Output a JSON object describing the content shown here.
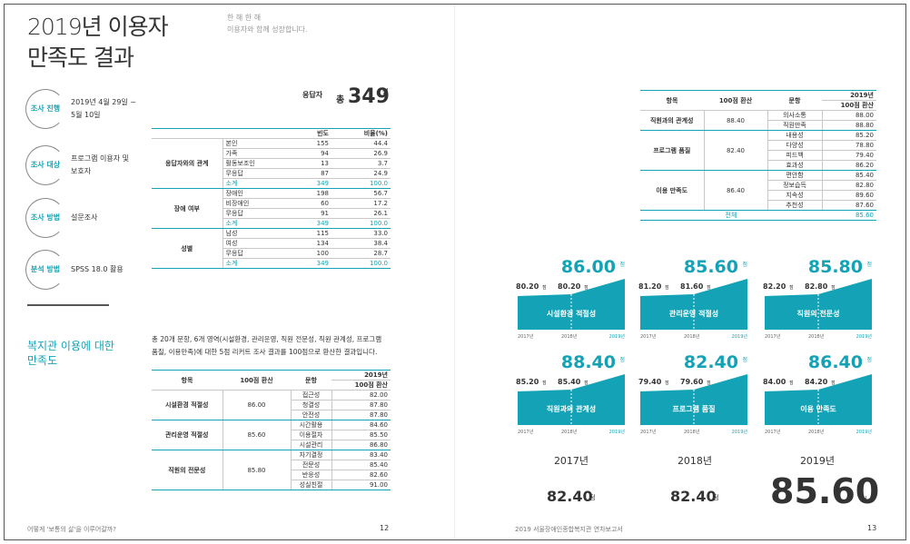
{
  "left_page": {
    "title": [
      "2019년 이용자",
      "만족도 결과"
    ],
    "subtitle": [
      "한 해 한 해",
      "이용자와 함께 성장합니다."
    ],
    "survey": [
      {
        "label": "조사 진행",
        "text": [
          "2019년 4월 29일 ~",
          "5월 10일"
        ]
      },
      {
        "label": "조사 대상",
        "text": [
          "프로그램 이용자 및",
          "보호자"
        ]
      },
      {
        "label": "조사 방법",
        "text": [
          "설문조사"
        ]
      },
      {
        "label": "분석 방법",
        "text": [
          "SPSS 18.0 활용"
        ]
      }
    ],
    "respondents": {
      "label": "응답자",
      "prefix": "총",
      "count": "349",
      "unit": "명"
    },
    "demographics": {
      "headers": [
        "빈도",
        "비율(%)"
      ],
      "groups": [
        {
          "name": "응답자와의 관계",
          "rows": [
            [
              "본인",
              "155",
              "44.4"
            ],
            [
              "가족",
              "94",
              "26.9"
            ],
            [
              "활동보조인",
              "13",
              "3.7"
            ],
            [
              "무응답",
              "87",
              "24.9"
            ],
            [
              "소계",
              "349",
              "100.0"
            ]
          ]
        },
        {
          "name": "장애 여부",
          "rows": [
            [
              "장애인",
              "198",
              "56.7"
            ],
            [
              "비장애인",
              "60",
              "17.2"
            ],
            [
              "무응답",
              "91",
              "26.1"
            ],
            [
              "소계",
              "349",
              "100.0"
            ]
          ]
        },
        {
          "name": "성별",
          "rows": [
            [
              "남성",
              "115",
              "33.0"
            ],
            [
              "여성",
              "134",
              "38.4"
            ],
            [
              "무응답",
              "100",
              "28.7"
            ],
            [
              "소계",
              "349",
              "100.0"
            ]
          ]
        }
      ]
    },
    "section_heading": [
      "복지관 이용에 대한",
      "만족도"
    ],
    "description": [
      "총 20개 문항, 6개 영역(시설환경, 관리운영, 직원 전문성, 직원 관계성, 프로그램",
      "품질, 이용만족)에 대한 5점 리커트 조사 결과를 100점으로 환산한 결과입니다."
    ],
    "scores": [
      {
        "area": "시설환경 적절성",
        "score": "86.00",
        "items": [
          [
            "접근성",
            "82.00"
          ],
          [
            "청결성",
            "87.80"
          ],
          [
            "안전성",
            "87.80"
          ]
        ]
      },
      {
        "area": "관리운영 적절성",
        "score": "85.60",
        "items": [
          [
            "시간활용",
            "84.60"
          ],
          [
            "이용절차",
            "85.50"
          ],
          [
            "시설관리",
            "86.80"
          ]
        ]
      },
      {
        "area": "직원의 전문성",
        "score": "85.80",
        "items": [
          [
            "자기결정",
            "83.40"
          ],
          [
            "전문성",
            "85.40"
          ],
          [
            "반응성",
            "82.60"
          ],
          [
            "성실친절",
            "91.00"
          ]
        ]
      }
    ],
    "footer": "어떻게 '보통의 삶'을 이루어갈까?",
    "page_number": "12"
  },
  "score_headers": [
    "항목",
    "100점 환산",
    "문항",
    "2019년",
    "100점 환산"
  ],
  "right_page": {
    "scores": [
      {
        "area": "직원과의 관계성",
        "score": "88.40",
        "items": [
          [
            "의사소통",
            "88.00"
          ],
          [
            "직원만족",
            "88.80"
          ]
        ]
      },
      {
        "area": "프로그램 품질",
        "score": "82.40",
        "items": [
          [
            "내용성",
            "85.20"
          ],
          [
            "다양성",
            "78.80"
          ],
          [
            "피드백",
            "79.40"
          ],
          [
            "효과성",
            "86.20"
          ]
        ]
      },
      {
        "area": "이용 만족도",
        "score": "86.40",
        "items": [
          [
            "편안함",
            "85.40"
          ],
          [
            "정보습득",
            "82.80"
          ],
          [
            "지속성",
            "89.60"
          ],
          [
            "추천성",
            "87.60"
          ]
        ]
      }
    ],
    "total": [
      "전체",
      "85.60"
    ],
    "unit": "점",
    "years": [
      "2017년",
      "2018년",
      "2019년"
    ],
    "trends": [
      {
        "name": "시설환경 적절성",
        "values": [
          "80.20",
          "80.20",
          "86.00"
        ]
      },
      {
        "name": "관리운영 적절성",
        "values": [
          "81.20",
          "81.60",
          "85.60"
        ]
      },
      {
        "name": "직원의 전문성",
        "values": [
          "82.20",
          "82.80",
          "85.80"
        ]
      },
      {
        "name": "직원과의 관계성",
        "values": [
          "85.20",
          "85.40",
          "88.40"
        ]
      },
      {
        "name": "프로그램 품질",
        "values": [
          "79.40",
          "79.60",
          "82.40"
        ]
      },
      {
        "name": "이용 만족도",
        "values": [
          "84.00",
          "84.20",
          "86.40"
        ]
      }
    ],
    "totals": [
      "82.40",
      "82.40",
      "85.60"
    ],
    "footer": "2019 서울장애인종합복지관 연차보고서",
    "page_number": "13"
  }
}
